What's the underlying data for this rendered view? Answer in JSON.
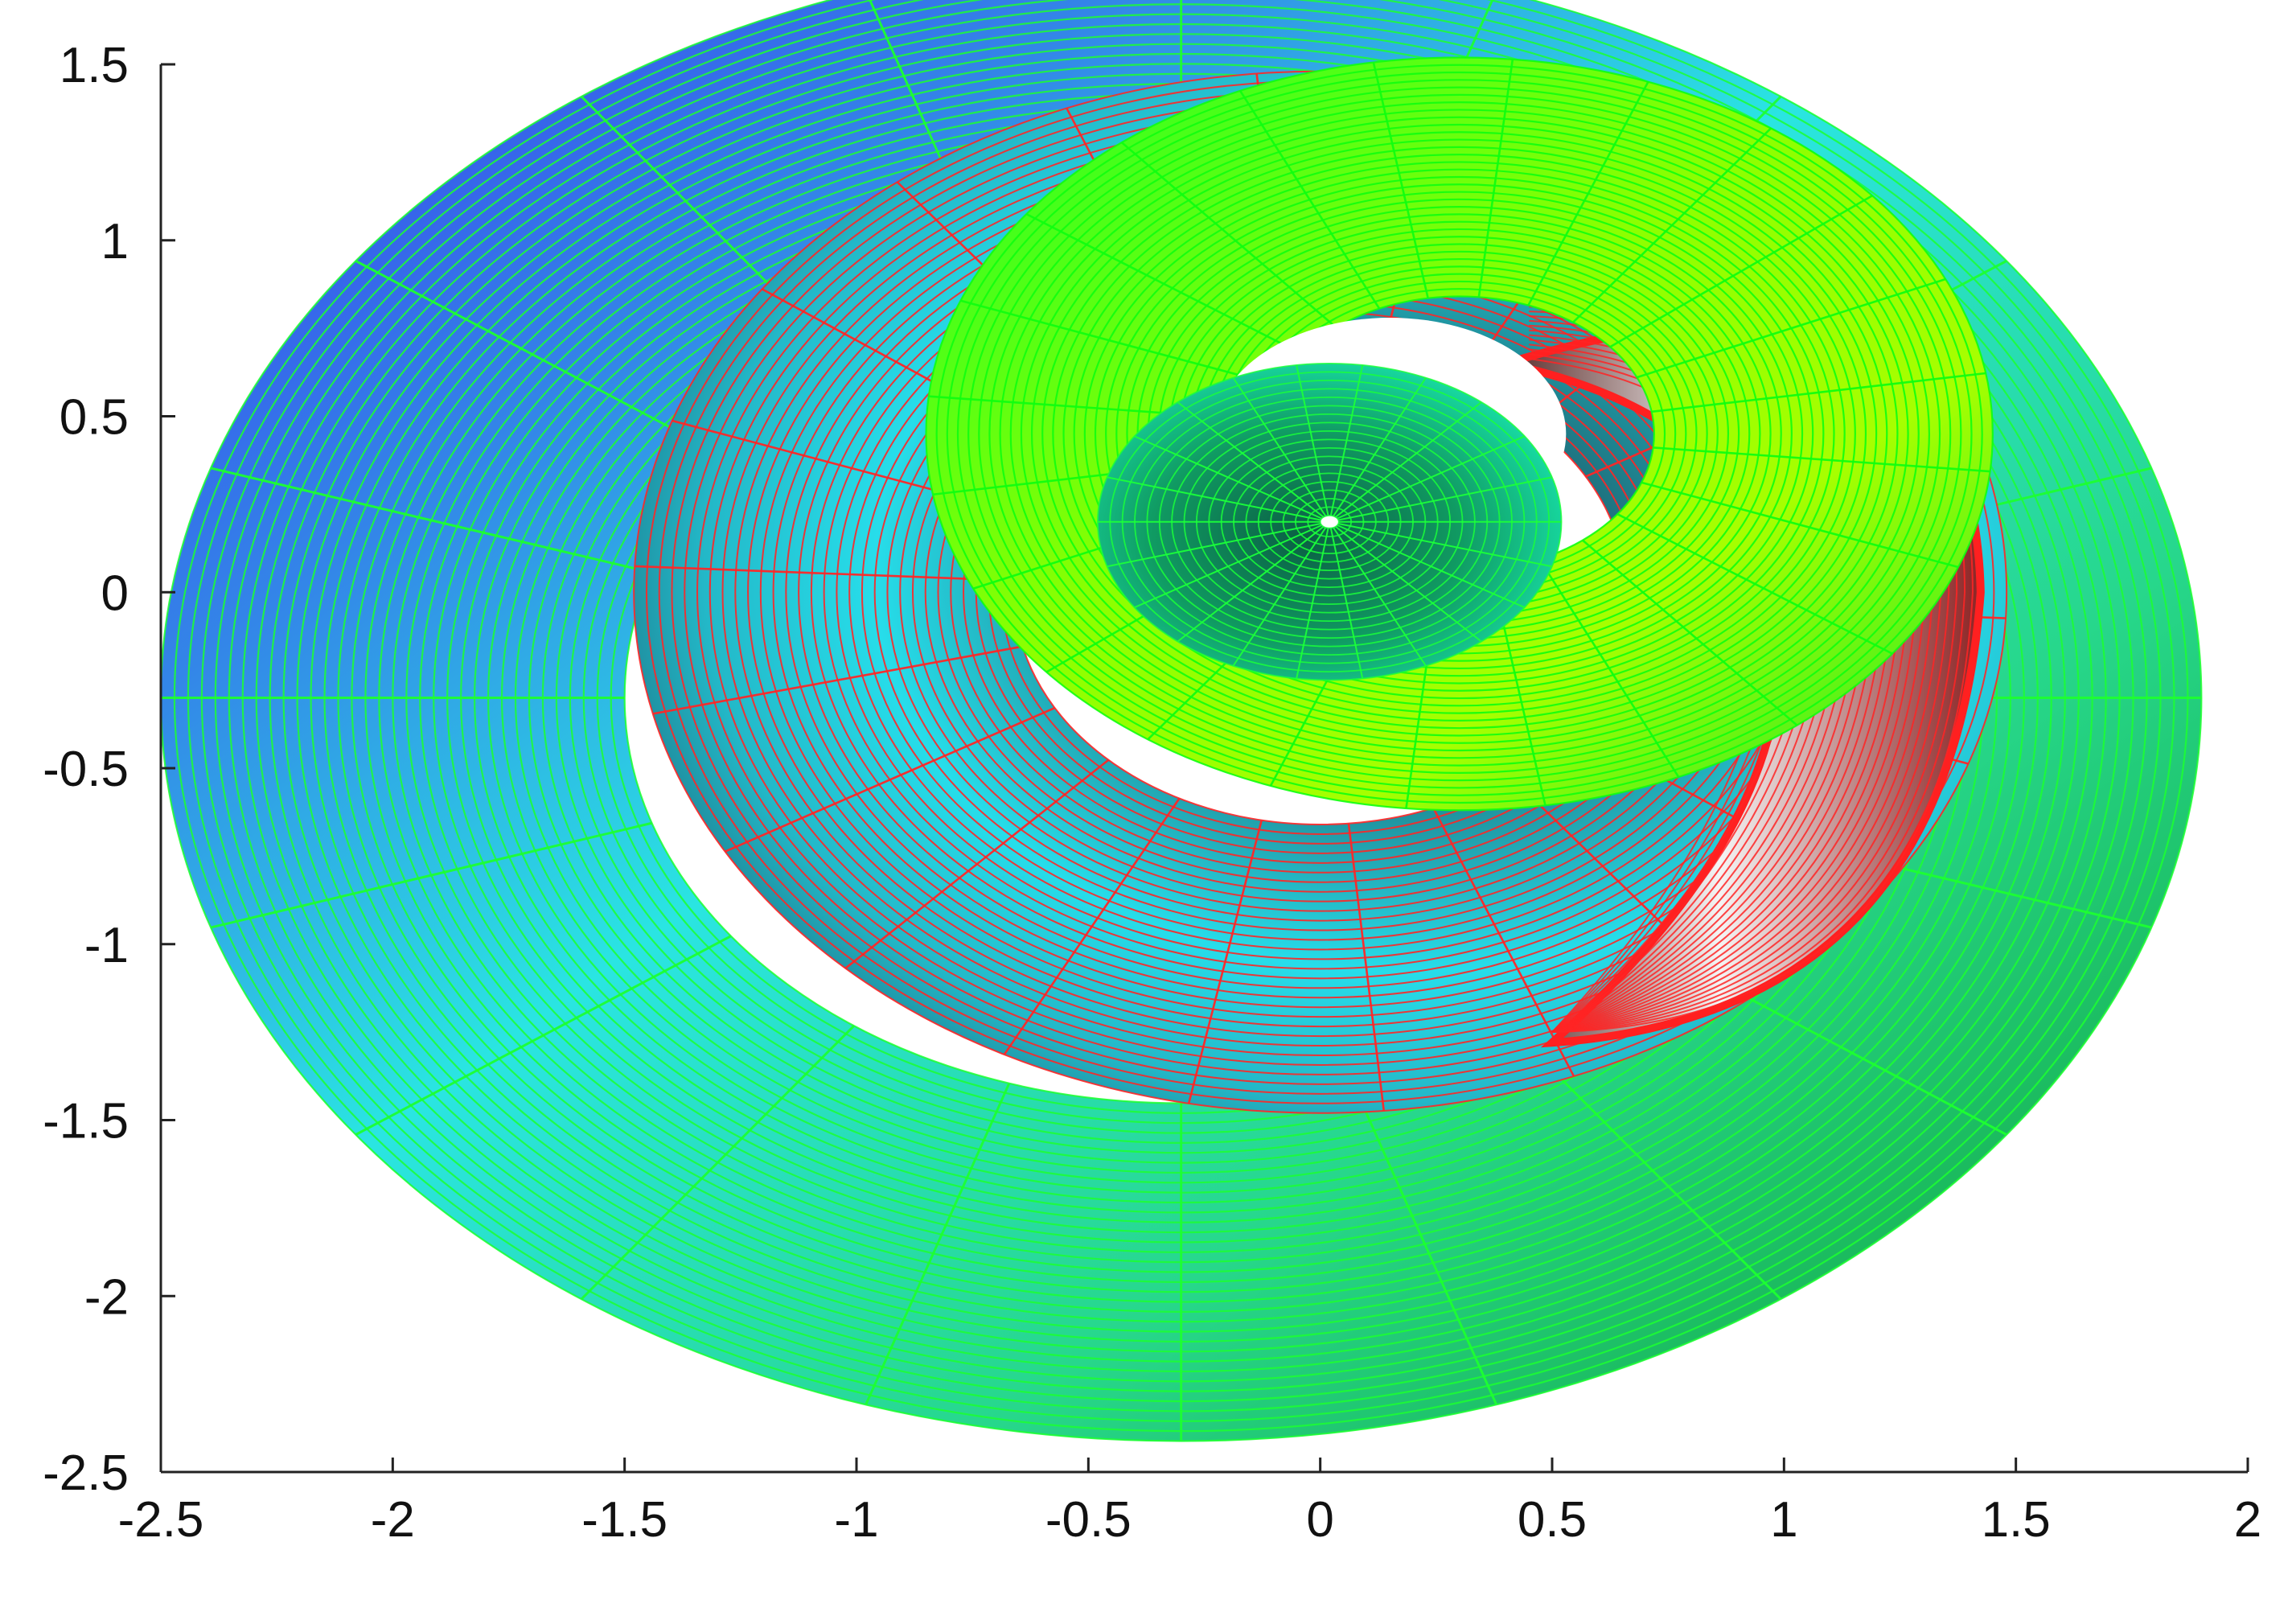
{
  "chart_data": {
    "type": "surface",
    "title": "",
    "xlabel": "",
    "ylabel": "",
    "xlim": [
      -2.5,
      2
    ],
    "ylim": [
      -2.5,
      1.5
    ],
    "x_ticks": [
      "-2.5",
      "-2",
      "-1.5",
      "-1",
      "-0.5",
      "0",
      "0.5",
      "1",
      "1.5",
      "2"
    ],
    "y_ticks": [
      "1.5",
      "1",
      "0.5",
      "0",
      "-0.5",
      "-1",
      "-1.5",
      "-2",
      "-2.5"
    ],
    "grid": false,
    "legend": "none",
    "description_of_surface": "",
    "series": [
      {
        "part": "outer-band",
        "center": [
          -0.3,
          -0.3
        ],
        "outer_radius": 2.2,
        "inner_radius": 1.2,
        "rotation_end_deg": 0,
        "fill_colors": [
          "#2f35e8",
          "#2e7fe0",
          "#27e4e0",
          "#2fd49a",
          "#1fcc55",
          "#14b83a"
        ],
        "mesh_color": "#1cff30"
      },
      {
        "part": "middle-band",
        "center": [
          0.0,
          0.0
        ],
        "outer_radius": 1.48,
        "inner_radius": 0.66,
        "fill_colors": [
          "#1b8e9a",
          "#27d4e0",
          "#26485c",
          "#ffffff"
        ],
        "mesh_color": "#ff2626"
      },
      {
        "part": "inner-band",
        "center": [
          0.3,
          0.45
        ],
        "outer_radius": 1.15,
        "inner_radius": 0.42,
        "fill_colors": [
          "#22ff20",
          "#78ff00",
          "#b5ff00",
          "#6fff4c"
        ],
        "mesh_color": "#10ff10"
      },
      {
        "part": "core",
        "center": [
          0.02,
          0.2
        ],
        "outer_radius": 0.5,
        "inner_radius": 0.0,
        "fill_colors": [
          "#10b050",
          "#0e7d4c",
          "#15e0a0"
        ],
        "mesh_color": "#1aff3a"
      }
    ],
    "colors": {
      "blue": "#2f35e8",
      "cyan": "#2ce8e4",
      "green": "#14f014",
      "red": "#ff2020",
      "dark_teal": "#1f4a5a"
    }
  }
}
